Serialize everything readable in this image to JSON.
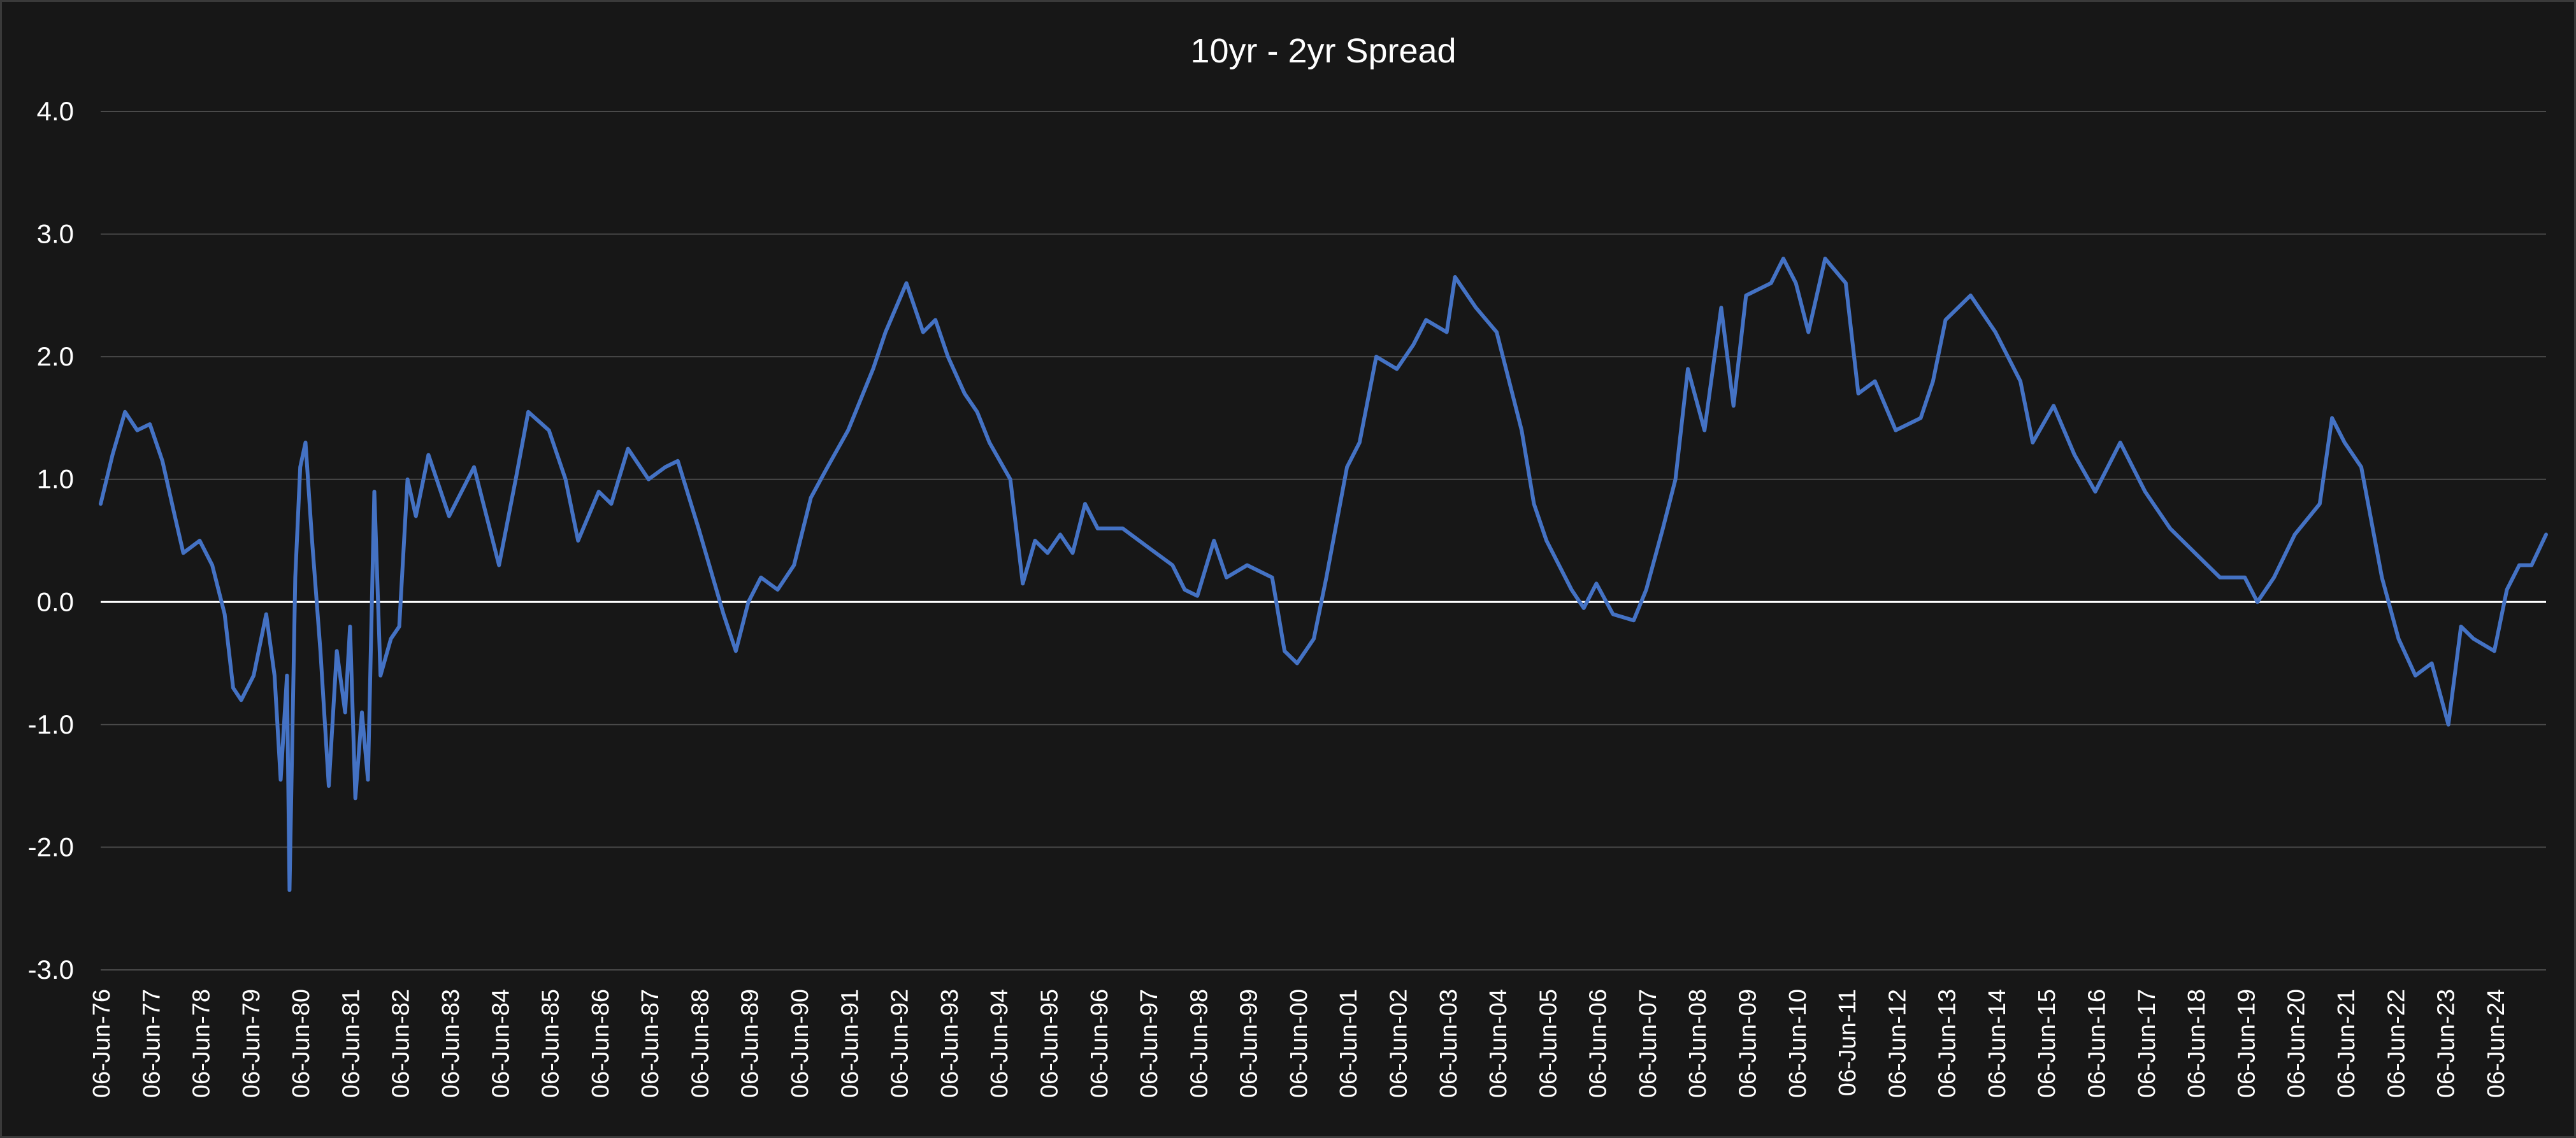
{
  "colors": {
    "background": "#171717",
    "series": "#4472C4",
    "gridline": "#4a4a4a",
    "zero_line": "#ffffff",
    "text": "#ffffff"
  },
  "chart_data": {
    "type": "line",
    "title": "10yr - 2yr Spread",
    "xlabel": "",
    "ylabel": "",
    "ylim": [
      -3,
      4
    ],
    "y_ticks": [
      "4.0",
      "3.0",
      "2.0",
      "1.0",
      "0.0",
      "-1.0",
      "-2.0",
      "-3.0"
    ],
    "x_ticks": [
      "06-Jun-76",
      "06-Jun-77",
      "06-Jun-78",
      "06-Jun-79",
      "06-Jun-80",
      "06-Jun-81",
      "06-Jun-82",
      "06-Jun-83",
      "06-Jun-84",
      "06-Jun-85",
      "06-Jun-86",
      "06-Jun-87",
      "06-Jun-88",
      "06-Jun-89",
      "06-Jun-90",
      "06-Jun-91",
      "06-Jun-92",
      "06-Jun-93",
      "06-Jun-94",
      "06-Jun-95",
      "06-Jun-96",
      "06-Jun-97",
      "06-Jun-98",
      "06-Jun-99",
      "06-Jun-00",
      "06-Jun-01",
      "06-Jun-02",
      "06-Jun-03",
      "06-Jun-04",
      "06-Jun-05",
      "06-Jun-06",
      "06-Jun-07",
      "06-Jun-08",
      "06-Jun-09",
      "06-Jun-10",
      "06-Jun-11",
      "06-Jun-12",
      "06-Jun-13",
      "06-Jun-14",
      "06-Jun-15",
      "06-Jun-16",
      "06-Jun-17",
      "06-Jun-18",
      "06-Jun-19",
      "06-Jun-20",
      "06-Jun-21",
      "06-Jun-22",
      "06-Jun-23",
      "06-Jun-24"
    ],
    "grid": true,
    "legend": "none",
    "x_range": [
      "1976-06-06",
      "2025-06-15"
    ],
    "series": [
      {
        "points": [
          [
            "1976-06-06",
            0.8
          ],
          [
            "1976-09-01",
            1.2
          ],
          [
            "1976-12-01",
            1.55
          ],
          [
            "1977-03-01",
            1.4
          ],
          [
            "1977-06-01",
            1.45
          ],
          [
            "1977-09-01",
            1.15
          ],
          [
            "1977-12-01",
            0.7
          ],
          [
            "1978-02-01",
            0.4
          ],
          [
            "1978-06-01",
            0.5
          ],
          [
            "1978-09-01",
            0.3
          ],
          [
            "1978-12-01",
            -0.1
          ],
          [
            "1979-02-01",
            -0.7
          ],
          [
            "1979-04-01",
            -0.8
          ],
          [
            "1979-07-01",
            -0.6
          ],
          [
            "1979-10-01",
            -0.1
          ],
          [
            "1979-12-01",
            -0.6
          ],
          [
            "1980-01-15",
            -1.45
          ],
          [
            "1980-03-01",
            -0.6
          ],
          [
            "1980-03-20",
            -2.35
          ],
          [
            "1980-05-01",
            0.2
          ],
          [
            "1980-06-06",
            1.1
          ],
          [
            "1980-07-15",
            1.3
          ],
          [
            "1980-09-01",
            0.5
          ],
          [
            "1980-11-01",
            -0.4
          ],
          [
            "1981-01-01",
            -1.5
          ],
          [
            "1981-03-01",
            -0.4
          ],
          [
            "1981-05-01",
            -0.9
          ],
          [
            "1981-06-06",
            -0.2
          ],
          [
            "1981-07-15",
            -1.6
          ],
          [
            "1981-09-01",
            -0.9
          ],
          [
            "1981-10-15",
            -1.45
          ],
          [
            "1981-12-01",
            0.9
          ],
          [
            "1982-01-15",
            -0.6
          ],
          [
            "1982-04-01",
            -0.3
          ],
          [
            "1982-06-01",
            -0.2
          ],
          [
            "1982-08-01",
            1.0
          ],
          [
            "1982-10-01",
            0.7
          ],
          [
            "1983-01-01",
            1.2
          ],
          [
            "1983-06-01",
            0.7
          ],
          [
            "1983-12-01",
            1.1
          ],
          [
            "1984-06-01",
            0.3
          ],
          [
            "1984-10-01",
            1.0
          ],
          [
            "1985-01-01",
            1.55
          ],
          [
            "1985-06-01",
            1.4
          ],
          [
            "1985-10-01",
            1.0
          ],
          [
            "1986-01-01",
            0.5
          ],
          [
            "1986-06-01",
            0.9
          ],
          [
            "1986-09-01",
            0.8
          ],
          [
            "1987-01-01",
            1.25
          ],
          [
            "1987-06-01",
            1.0
          ],
          [
            "1987-10-01",
            1.1
          ],
          [
            "1988-01-01",
            1.15
          ],
          [
            "1988-06-01",
            0.6
          ],
          [
            "1988-12-01",
            -0.1
          ],
          [
            "1989-03-01",
            -0.4
          ],
          [
            "1989-06-01",
            0.0
          ],
          [
            "1989-09-01",
            0.2
          ],
          [
            "1990-01-01",
            0.1
          ],
          [
            "1990-05-01",
            0.3
          ],
          [
            "1990-09-01",
            0.85
          ],
          [
            "1991-01-01",
            1.1
          ],
          [
            "1991-06-01",
            1.4
          ],
          [
            "1991-12-01",
            1.9
          ],
          [
            "1992-03-01",
            2.2
          ],
          [
            "1992-08-01",
            2.6
          ],
          [
            "1992-12-01",
            2.2
          ],
          [
            "1993-03-01",
            2.3
          ],
          [
            "1993-06-01",
            2.0
          ],
          [
            "1993-10-01",
            1.7
          ],
          [
            "1994-01-01",
            1.55
          ],
          [
            "1994-04-01",
            1.3
          ],
          [
            "1994-09-01",
            1.0
          ],
          [
            "1994-12-01",
            0.15
          ],
          [
            "1995-03-01",
            0.5
          ],
          [
            "1995-06-01",
            0.4
          ],
          [
            "1995-09-01",
            0.55
          ],
          [
            "1995-12-01",
            0.4
          ],
          [
            "1996-03-01",
            0.8
          ],
          [
            "1996-06-01",
            0.6
          ],
          [
            "1996-12-01",
            0.6
          ],
          [
            "1997-06-01",
            0.45
          ],
          [
            "1997-12-01",
            0.3
          ],
          [
            "1998-03-01",
            0.1
          ],
          [
            "1998-06-01",
            0.05
          ],
          [
            "1998-10-01",
            0.5
          ],
          [
            "1999-01-01",
            0.2
          ],
          [
            "1999-06-01",
            0.3
          ],
          [
            "1999-12-01",
            0.2
          ],
          [
            "2000-03-01",
            -0.4
          ],
          [
            "2000-06-01",
            -0.5
          ],
          [
            "2000-10-01",
            -0.3
          ],
          [
            "2001-01-01",
            0.2
          ],
          [
            "2001-06-01",
            1.1
          ],
          [
            "2001-09-01",
            1.3
          ],
          [
            "2002-01-01",
            2.0
          ],
          [
            "2002-06-01",
            1.9
          ],
          [
            "2002-10-01",
            2.1
          ],
          [
            "2003-01-01",
            2.3
          ],
          [
            "2003-06-01",
            2.2
          ],
          [
            "2003-08-01",
            2.65
          ],
          [
            "2004-01-01",
            2.4
          ],
          [
            "2004-06-01",
            2.2
          ],
          [
            "2004-12-01",
            1.4
          ],
          [
            "2005-03-01",
            0.8
          ],
          [
            "2005-06-01",
            0.5
          ],
          [
            "2005-12-01",
            0.1
          ],
          [
            "2006-03-01",
            -0.05
          ],
          [
            "2006-06-01",
            0.15
          ],
          [
            "2006-10-01",
            -0.1
          ],
          [
            "2007-03-01",
            -0.15
          ],
          [
            "2007-06-01",
            0.1
          ],
          [
            "2007-10-01",
            0.6
          ],
          [
            "2008-01-01",
            1.0
          ],
          [
            "2008-04-01",
            1.9
          ],
          [
            "2008-08-01",
            1.4
          ],
          [
            "2008-12-01",
            2.4
          ],
          [
            "2009-03-01",
            1.6
          ],
          [
            "2009-06-01",
            2.5
          ],
          [
            "2009-12-01",
            2.6
          ],
          [
            "2010-03-01",
            2.8
          ],
          [
            "2010-06-01",
            2.6
          ],
          [
            "2010-09-01",
            2.2
          ],
          [
            "2011-01-01",
            2.8
          ],
          [
            "2011-06-01",
            2.6
          ],
          [
            "2011-09-01",
            1.7
          ],
          [
            "2012-01-01",
            1.8
          ],
          [
            "2012-06-01",
            1.4
          ],
          [
            "2012-12-01",
            1.5
          ],
          [
            "2013-03-01",
            1.8
          ],
          [
            "2013-06-01",
            2.3
          ],
          [
            "2013-12-01",
            2.5
          ],
          [
            "2014-06-01",
            2.2
          ],
          [
            "2014-12-01",
            1.8
          ],
          [
            "2015-03-01",
            1.3
          ],
          [
            "2015-08-01",
            1.6
          ],
          [
            "2016-01-01",
            1.2
          ],
          [
            "2016-06-01",
            0.9
          ],
          [
            "2016-12-01",
            1.3
          ],
          [
            "2017-06-01",
            0.9
          ],
          [
            "2017-12-01",
            0.6
          ],
          [
            "2018-06-01",
            0.4
          ],
          [
            "2018-12-01",
            0.2
          ],
          [
            "2019-06-01",
            0.2
          ],
          [
            "2019-09-01",
            0.0
          ],
          [
            "2020-01-01",
            0.2
          ],
          [
            "2020-06-01",
            0.55
          ],
          [
            "2020-12-01",
            0.8
          ],
          [
            "2021-03-01",
            1.5
          ],
          [
            "2021-06-01",
            1.3
          ],
          [
            "2021-10-01",
            1.1
          ],
          [
            "2022-03-01",
            0.2
          ],
          [
            "2022-07-01",
            -0.3
          ],
          [
            "2022-11-01",
            -0.6
          ],
          [
            "2023-03-01",
            -0.5
          ],
          [
            "2023-07-01",
            -1.0
          ],
          [
            "2023-10-01",
            -0.2
          ],
          [
            "2024-01-01",
            -0.3
          ],
          [
            "2024-06-01",
            -0.4
          ],
          [
            "2024-09-01",
            0.1
          ],
          [
            "2024-12-01",
            0.3
          ],
          [
            "2025-03-01",
            0.3
          ],
          [
            "2025-06-15",
            0.55
          ]
        ]
      }
    ]
  }
}
